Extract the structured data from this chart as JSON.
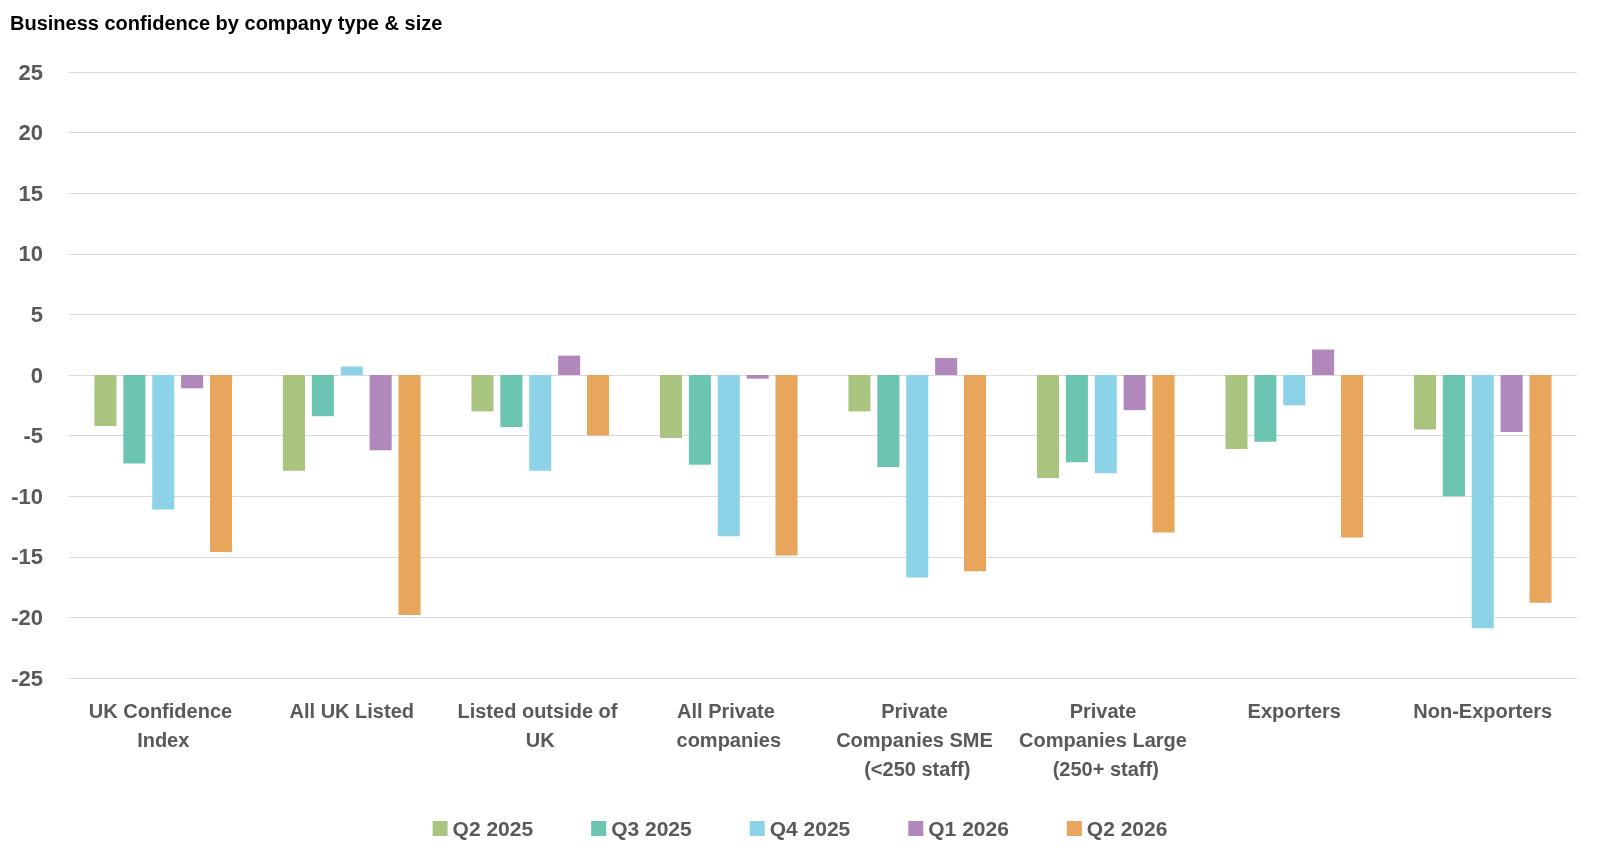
{
  "chart_data": {
    "type": "bar",
    "title": "Business confidence by company type & size",
    "categories": [
      "UK Confidence Index",
      "All UK Listed",
      "Listed outside of UK",
      "All Private companies",
      "Private Companies SME (<250 staff)",
      "Private Companies Large (250+ staff)",
      "Exporters",
      "Non-Exporters"
    ],
    "series": [
      {
        "name": "Q2 2025",
        "color": "#a9c47f",
        "values": [
          -4.2,
          -7.9,
          -3.0,
          -5.2,
          -3.0,
          -8.5,
          -6.1,
          -4.5
        ]
      },
      {
        "name": "Q3 2025",
        "color": "#6cc5b0",
        "values": [
          -7.3,
          -3.4,
          -4.3,
          -7.4,
          -7.6,
          -7.2,
          -5.5,
          -10.0
        ]
      },
      {
        "name": "Q4 2025",
        "color": "#8dd3e8",
        "values": [
          -11.1,
          0.7,
          -7.9,
          -13.3,
          -16.7,
          -8.1,
          -2.5,
          -20.9
        ]
      },
      {
        "name": "Q1 2026",
        "color": "#b088bc",
        "values": [
          -1.1,
          -6.2,
          1.6,
          -0.3,
          1.4,
          -2.9,
          2.1,
          -4.7
        ]
      },
      {
        "name": "Q2 2026",
        "color": "#e8a55c",
        "values": [
          -14.6,
          -19.8,
          -5.0,
          -14.9,
          -16.2,
          -13.0,
          -13.4,
          -18.8
        ]
      }
    ],
    "ylim": [
      -25,
      25
    ],
    "yticks": [
      -25,
      -20,
      -15,
      -10,
      -5,
      0,
      5,
      10,
      15,
      20,
      25
    ],
    "grid": "y",
    "legend": "bottom"
  }
}
